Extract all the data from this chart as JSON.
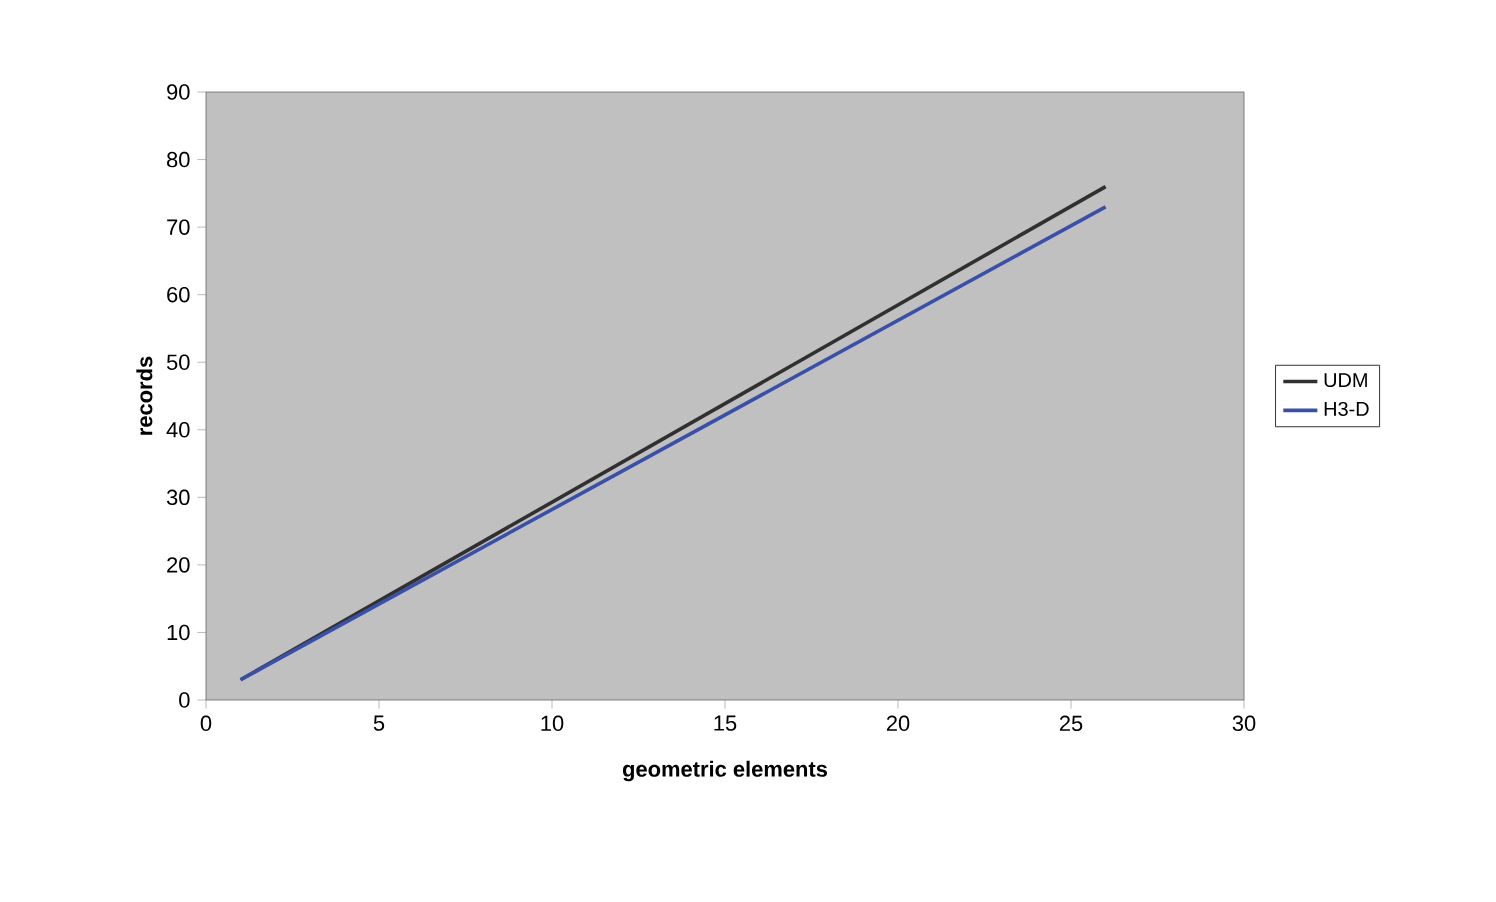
{
  "chart_data": {
    "type": "line",
    "xlabel": "geometric elements",
    "ylabel": "records",
    "xlim": [
      0,
      30
    ],
    "ylim": [
      0,
      90
    ],
    "xticks": [
      0,
      5,
      10,
      15,
      20,
      25,
      30
    ],
    "yticks": [
      0,
      10,
      20,
      30,
      40,
      50,
      60,
      70,
      80,
      90
    ],
    "x": [
      1,
      26
    ],
    "grid": false,
    "legend": "right",
    "marker": "none",
    "line_style": "solid",
    "series": [
      {
        "name": "UDM",
        "color": "#303030",
        "values": [
          3,
          76
        ]
      },
      {
        "name": "H3-D",
        "color": "#3a50a8",
        "values": [
          3,
          73
        ]
      }
    ]
  }
}
